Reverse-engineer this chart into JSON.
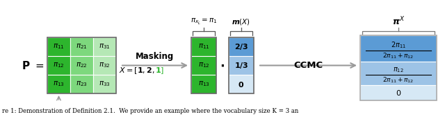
{
  "bg_color": "#ffffff",
  "col_colors": [
    "#2db52d",
    "#7dd87d",
    "#b5e8b5"
  ],
  "blue_dark": "#5b9bd5",
  "blue_mid": "#9dc3e6",
  "blue_light": "#d6e8f5",
  "arrow_color": "#aaaaaa",
  "green_text_color": "#2db52d",
  "caption": "re 1: Demonstration of Definition 2.1.  We provide an example where the vocabulary size K = 3 an"
}
